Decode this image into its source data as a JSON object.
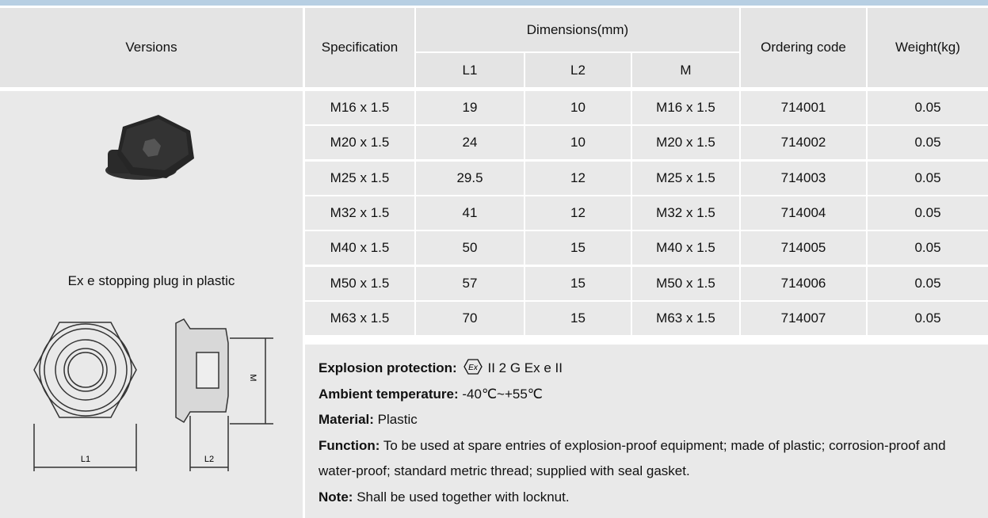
{
  "header": {
    "versions": "Versions",
    "specification": "Specification",
    "dimensions": "Dimensions(mm)",
    "l1": "L1",
    "l2": "L2",
    "m": "M",
    "ordering_code": "Ordering code",
    "weight": "Weight(kg)"
  },
  "version": {
    "caption": "Ex e stopping plug in plastic",
    "drawing_labels": [
      "M",
      "L1",
      "L2"
    ]
  },
  "table": {
    "rows": [
      [
        "M16 x 1.5",
        "19",
        "10",
        "M16 x 1.5",
        "714001",
        "0.05"
      ],
      [
        "M20 x 1.5",
        "24",
        "10",
        "M20 x 1.5",
        "714002",
        "0.05"
      ],
      [
        "M25 x 1.5",
        "29.5",
        "12",
        "M25 x 1.5",
        "714003",
        "0.05"
      ],
      [
        "M32 x 1.5",
        "41",
        "12",
        "M32 x 1.5",
        "714004",
        "0.05"
      ],
      [
        "M40 x 1.5",
        "50",
        "15",
        "M40 x 1.5",
        "714005",
        "0.05"
      ],
      [
        "M50 x 1.5",
        "57",
        "15",
        "M50 x 1.5",
        "714006",
        "0.05"
      ],
      [
        "M63 x 1.5",
        "70",
        "15",
        "M63 x 1.5",
        "714007",
        "0.05"
      ]
    ]
  },
  "notes": {
    "ex_symbol": "Ex",
    "items": [
      {
        "label": "Explosion protection:",
        "text": "II 2 G Ex e II"
      },
      {
        "label": "Ambient temperature:",
        "text": "-40℃~+55℃"
      },
      {
        "label": "Material:",
        "text": "Plastic"
      },
      {
        "label": "Function:",
        "text": "To be used at spare entries of explosion-proof equipment; made of plastic; corrosion-proof and water-proof; standard metric thread; supplied with seal gasket."
      },
      {
        "label": "Note:",
        "text": "Shall be used together with locknut."
      }
    ]
  }
}
